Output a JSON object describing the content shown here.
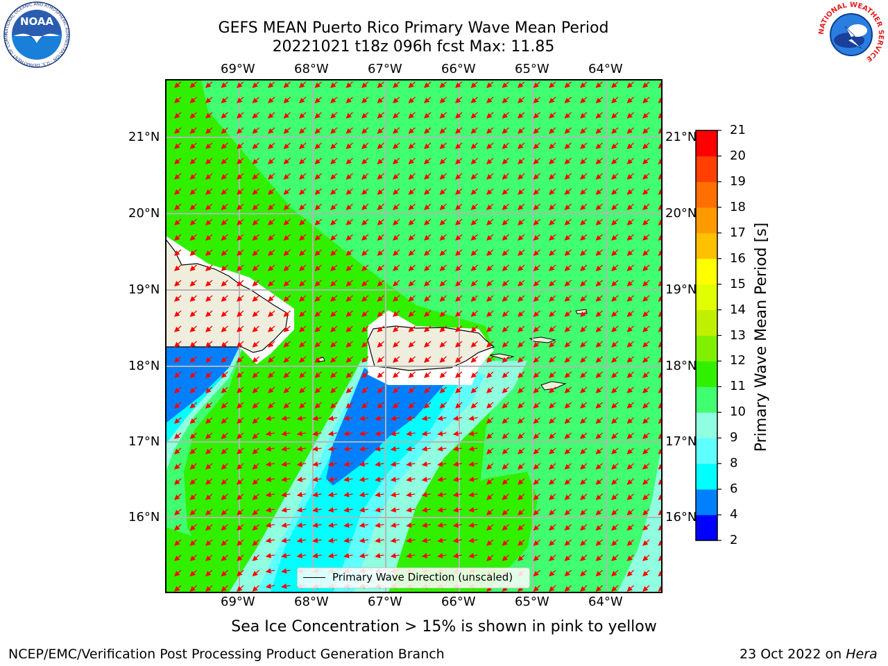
{
  "header": {
    "title_line1": "GEFS MEAN Puerto Rico Primary Wave Mean Period",
    "title_line2": "20221021 t18z 096h fcst   Max: 11.85"
  },
  "logos": {
    "noaa": "NOAA",
    "noaa_ring": "NATIONAL OCEANIC AND ATMOSPHERIC ADMINISTRATION · U.S. DEPARTMENT OF COMMERCE",
    "nws_ring": "NATIONAL WEATHER SERVICE"
  },
  "map": {
    "lon_labels": [
      "69°W",
      "68°W",
      "67°W",
      "66°W",
      "65°W",
      "64°W"
    ],
    "lat_labels": [
      "21°N",
      "20°N",
      "19°N",
      "18°N",
      "17°N",
      "16°N"
    ],
    "legend_label": "Primary Wave Direction (unscaled)",
    "arrow_color": "#ff0000",
    "land_color": "#efeddc"
  },
  "colorbar": {
    "label": "Primary Wave Mean Period [s]",
    "ticks": [
      "21",
      "20",
      "19",
      "18",
      "17",
      "16",
      "15",
      "14",
      "13",
      "12",
      "11",
      "10",
      "9",
      "8",
      "6",
      "4",
      "2"
    ],
    "colors": [
      "#0000ff",
      "#0080ff",
      "#00ffff",
      "#60ffff",
      "#90ffe0",
      "#40ff70",
      "#30f000",
      "#80f000",
      "#c0f000",
      "#e0ff00",
      "#ffff00",
      "#ffc000",
      "#ff9900",
      "#ff7000",
      "#ff4000",
      "#ff0000"
    ]
  },
  "footer": {
    "sea_ice_note": "Sea Ice Concentration > 15% is shown in pink to yellow",
    "branch": "NCEP/EMC/Verification Post Processing Product Generation Branch",
    "date": "23 Oct 2022 on",
    "host": "Hera"
  }
}
